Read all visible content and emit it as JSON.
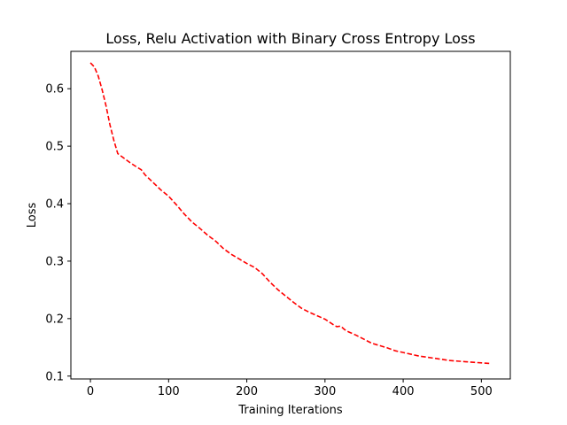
{
  "chart_data": {
    "type": "line",
    "title": "Loss, Relu Activation with Binary Cross Entropy Loss",
    "xlabel": "Training Iterations",
    "ylabel": "Loss",
    "xlim": [
      -25,
      537
    ],
    "ylim": [
      0.095,
      0.665
    ],
    "xticks": [
      0,
      100,
      200,
      300,
      400,
      500
    ],
    "yticks": [
      0.1,
      0.2,
      0.3,
      0.4,
      0.5,
      0.6
    ],
    "grid": false,
    "legend": "none",
    "series": [
      {
        "color": "#ff0000",
        "style": "dashed",
        "x": [
          0,
          5,
          10,
          15,
          20,
          25,
          30,
          35,
          40,
          50,
          60,
          65,
          70,
          80,
          90,
          100,
          110,
          120,
          130,
          140,
          150,
          160,
          170,
          180,
          190,
          200,
          210,
          220,
          230,
          240,
          250,
          260,
          270,
          280,
          290,
          300,
          310,
          315,
          320,
          325,
          330,
          340,
          350,
          360,
          370,
          380,
          390,
          400,
          410,
          420,
          430,
          440,
          450,
          460,
          470,
          480,
          490,
          500,
          510
        ],
        "y": [
          0.645,
          0.638,
          0.622,
          0.598,
          0.57,
          0.537,
          0.51,
          0.487,
          0.482,
          0.472,
          0.463,
          0.459,
          0.45,
          0.437,
          0.424,
          0.413,
          0.398,
          0.382,
          0.368,
          0.357,
          0.345,
          0.335,
          0.322,
          0.312,
          0.304,
          0.296,
          0.289,
          0.278,
          0.263,
          0.25,
          0.239,
          0.228,
          0.218,
          0.211,
          0.205,
          0.199,
          0.19,
          0.186,
          0.187,
          0.181,
          0.177,
          0.171,
          0.164,
          0.157,
          0.153,
          0.149,
          0.144,
          0.141,
          0.138,
          0.135,
          0.133,
          0.131,
          0.129,
          0.127,
          0.126,
          0.125,
          0.124,
          0.123,
          0.122
        ]
      }
    ]
  }
}
